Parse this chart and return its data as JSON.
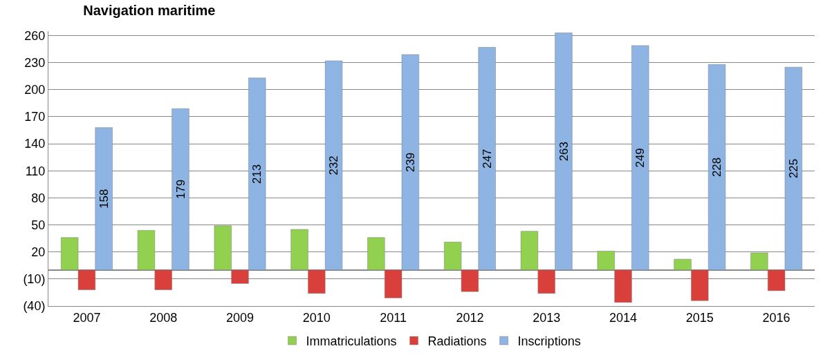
{
  "chart_data": {
    "type": "bar",
    "title": "Navigation maritime",
    "categories": [
      "2007",
      "2008",
      "2009",
      "2010",
      "2011",
      "2012",
      "2013",
      "2014",
      "2015",
      "2016"
    ],
    "series": [
      {
        "name": "Immatriculations",
        "color": "#92d050",
        "values": [
          36,
          44,
          49,
          45,
          36,
          31,
          43,
          21,
          12,
          19
        ]
      },
      {
        "name": "Radiations",
        "color": "#d9403b",
        "values": [
          -22,
          -22,
          -15,
          -26,
          -31,
          -24,
          -26,
          -36,
          -34,
          -23
        ]
      },
      {
        "name": "Inscriptions",
        "color": "#8db4e2",
        "values": [
          158,
          179,
          213,
          232,
          239,
          247,
          263,
          249,
          228,
          225
        ],
        "value_labels": [
          "158",
          "179",
          "213",
          "232",
          "239",
          "247",
          "263",
          "249",
          "228",
          "225"
        ]
      }
    ],
    "ylim": [
      -40,
      265
    ],
    "yticks": [
      {
        "value": -40,
        "label": "(40)"
      },
      {
        "value": -10,
        "label": "(10)"
      },
      20,
      50,
      80,
      110,
      140,
      170,
      200,
      230,
      260
    ],
    "grid": "y",
    "legend": "bottom"
  }
}
